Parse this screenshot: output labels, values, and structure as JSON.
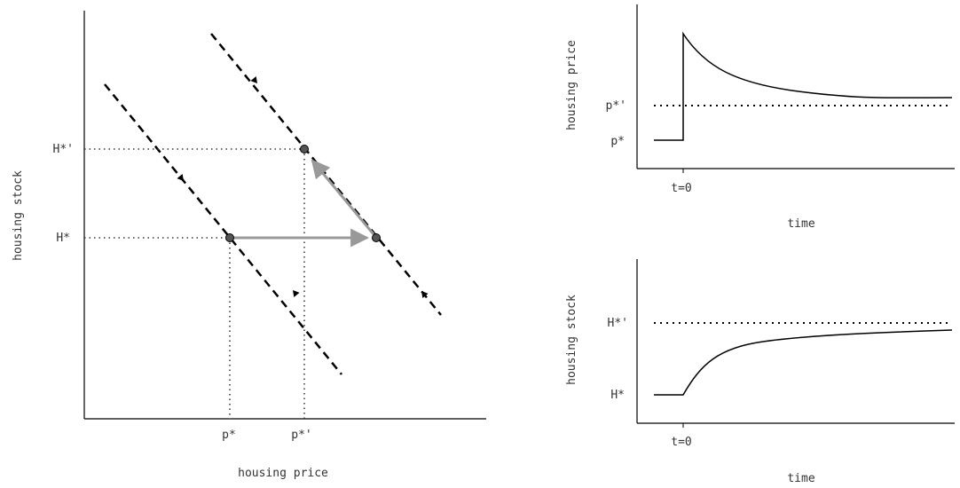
{
  "phase_diagram": {
    "xlabel": "housing price",
    "ylabel": "housing stock",
    "x_ticks": [
      "p*",
      "p*'"
    ],
    "y_ticks": [
      "H*",
      "H*'"
    ]
  },
  "price_panel": {
    "ylabel": "housing price",
    "xlabel": "time",
    "x_tick": "t=0",
    "y_ticks": [
      "p*",
      "p*'"
    ]
  },
  "stock_panel": {
    "ylabel": "housing stock",
    "xlabel": "time",
    "x_tick": "t=0",
    "y_ticks": [
      "H*",
      "H*'"
    ]
  },
  "colors": {
    "axis": "#000000",
    "path": "#999999",
    "text": "#333333"
  }
}
